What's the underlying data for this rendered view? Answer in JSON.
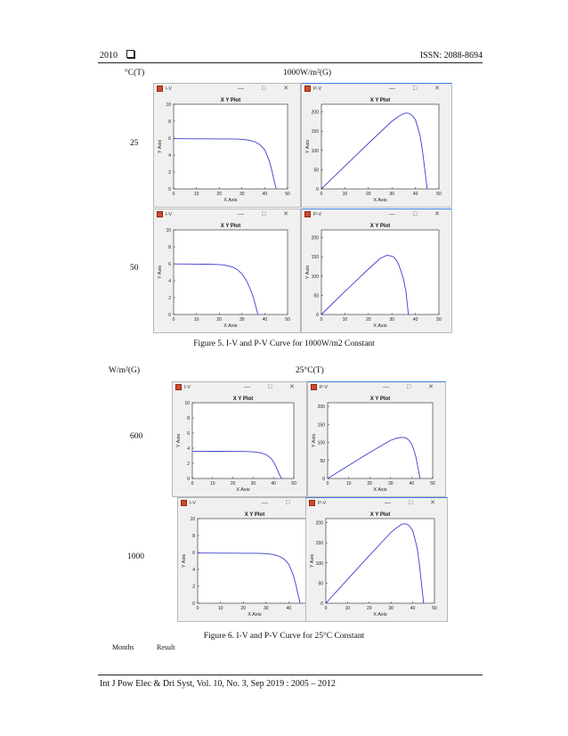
{
  "header": {
    "left": "2010",
    "right": "ISSN: 2088-8694"
  },
  "footer": {
    "citation": "Int J Pow Elec & Dri Syst, Vol. 10, No. 3, Sep 2019 :  2005 – 2012"
  },
  "figure5": {
    "col_temp": "°C(T)",
    "col_irr": "1000W/m²(G)",
    "row1": "25",
    "row2": "50",
    "caption": "Figure 5. I-V and P-V Curve for 1000W/m2 Constant"
  },
  "figure6": {
    "col_irr": "W/m²(G)",
    "col_temp": "25°C(T)",
    "row1": "600",
    "row2": "1000",
    "caption": "Figure 6. I-V and P-V Curve for 25°C Constant"
  },
  "table_fragment": {
    "col1": "Months",
    "col2": "Result"
  },
  "window": {
    "iv_title": "I-V",
    "pv_title": "P-V",
    "plot_title": "X Y Plot",
    "xlabel": "X Axis",
    "ylabel": "Y Axis",
    "controls": "— □ ✕",
    "icon": "matlab-figure-icon"
  },
  "colors": {
    "curve": "#3c3cd0",
    "window_bg": "#f0f0f0",
    "active_border": "#3f7fd9"
  },
  "chart_data": [
    {
      "id": "f5_iv_25",
      "type": "line",
      "title": "X Y Plot",
      "xlabel": "X Axis",
      "ylabel": "Y Axis",
      "xlim": [
        0,
        50
      ],
      "ylim": [
        0,
        10
      ],
      "xticks": [
        0,
        10,
        20,
        30,
        40,
        50
      ],
      "yticks": [
        0,
        2,
        4,
        6,
        8,
        10
      ],
      "x": [
        0,
        5,
        10,
        15,
        20,
        25,
        28,
        30,
        32,
        34,
        36,
        38,
        40,
        42,
        43,
        44,
        45
      ],
      "y": [
        5.93,
        5.93,
        5.92,
        5.92,
        5.91,
        5.9,
        5.88,
        5.85,
        5.8,
        5.7,
        5.52,
        5.2,
        4.6,
        3.3,
        2.3,
        1.1,
        0
      ]
    },
    {
      "id": "f5_pv_25",
      "type": "line",
      "title": "X Y Plot",
      "xlabel": "X Axis",
      "ylabel": "Y Axis",
      "xlim": [
        0,
        50
      ],
      "ylim": [
        0,
        220
      ],
      "xticks": [
        0,
        10,
        20,
        30,
        40,
        50
      ],
      "yticks": [
        0,
        50,
        100,
        150,
        200
      ],
      "x": [
        0,
        5,
        10,
        15,
        20,
        25,
        30,
        33,
        35,
        36,
        37,
        38,
        39,
        40,
        41,
        42,
        43,
        44,
        45
      ],
      "y": [
        0,
        29.7,
        59.2,
        88.8,
        118,
        147,
        176,
        189,
        196,
        197,
        197,
        194,
        188,
        180,
        160,
        138,
        100,
        50,
        0
      ]
    },
    {
      "id": "f5_iv_50",
      "type": "line",
      "title": "X Y Plot",
      "xlabel": "X Axis",
      "ylabel": "Y Axis",
      "xlim": [
        0,
        50
      ],
      "ylim": [
        0,
        10
      ],
      "xticks": [
        0,
        10,
        20,
        30,
        40,
        50
      ],
      "yticks": [
        0,
        2,
        4,
        6,
        8,
        10
      ],
      "x": [
        0,
        5,
        10,
        15,
        20,
        22,
        24,
        26,
        28,
        30,
        32,
        34,
        35,
        36,
        37
      ],
      "y": [
        5.98,
        5.97,
        5.96,
        5.95,
        5.9,
        5.85,
        5.75,
        5.6,
        5.3,
        4.8,
        4.0,
        2.8,
        2.0,
        1.0,
        0
      ]
    },
    {
      "id": "f5_pv_50",
      "type": "line",
      "title": "X Y Plot",
      "xlabel": "X Axis",
      "ylabel": "Y Axis",
      "xlim": [
        0,
        50
      ],
      "ylim": [
        0,
        220
      ],
      "xticks": [
        0,
        10,
        20,
        30,
        40,
        50
      ],
      "yticks": [
        0,
        50,
        100,
        150,
        200
      ],
      "x": [
        0,
        5,
        10,
        15,
        20,
        25,
        28,
        30,
        31,
        32,
        33,
        34,
        35,
        36,
        37
      ],
      "y": [
        0,
        30,
        60,
        89,
        118,
        146,
        154,
        152,
        148,
        140,
        128,
        110,
        90,
        60,
        0
      ]
    },
    {
      "id": "f6_iv_600",
      "type": "line",
      "title": "X Y Plot",
      "xlabel": "X Axis",
      "ylabel": "Y Axis",
      "xlim": [
        0,
        50
      ],
      "ylim": [
        0,
        10
      ],
      "xticks": [
        0,
        10,
        20,
        30,
        40,
        50
      ],
      "yticks": [
        0,
        2,
        4,
        6,
        8,
        10
      ],
      "x": [
        0,
        5,
        10,
        15,
        20,
        25,
        30,
        33,
        35,
        37,
        39,
        40,
        41,
        42,
        43,
        44
      ],
      "y": [
        3.6,
        3.6,
        3.59,
        3.59,
        3.58,
        3.57,
        3.52,
        3.42,
        3.3,
        3.05,
        2.6,
        2.2,
        1.7,
        1.1,
        0.5,
        0
      ]
    },
    {
      "id": "f6_pv_600",
      "type": "line",
      "title": "X Y Plot",
      "xlabel": "X Axis",
      "ylabel": "Y Axis",
      "xlim": [
        0,
        50
      ],
      "ylim": [
        0,
        210
      ],
      "xticks": [
        0,
        10,
        20,
        30,
        40,
        50
      ],
      "yticks": [
        0,
        50,
        100,
        150,
        200
      ],
      "x": [
        0,
        5,
        10,
        15,
        20,
        25,
        30,
        33,
        35,
        36,
        37,
        38,
        39,
        40,
        41,
        42,
        43,
        44
      ],
      "y": [
        0,
        18,
        36,
        54,
        72,
        89,
        106,
        112,
        114,
        114,
        113,
        110,
        104,
        95,
        80,
        60,
        30,
        0
      ]
    },
    {
      "id": "f6_iv_1000",
      "type": "line",
      "title": "X Y Plot",
      "xlabel": "X Axis",
      "ylabel": "Y Axis",
      "xlim": [
        0,
        50
      ],
      "ylim": [
        0,
        10
      ],
      "xticks": [
        0,
        10,
        20,
        30,
        40,
        50
      ],
      "yticks": [
        0,
        2,
        4,
        6,
        8,
        10
      ],
      "x": [
        0,
        5,
        10,
        15,
        20,
        25,
        28,
        30,
        32,
        34,
        36,
        38,
        40,
        42,
        43,
        44,
        45
      ],
      "y": [
        5.93,
        5.93,
        5.92,
        5.92,
        5.91,
        5.9,
        5.88,
        5.85,
        5.8,
        5.7,
        5.52,
        5.2,
        4.6,
        3.3,
        2.3,
        1.1,
        0
      ]
    },
    {
      "id": "f6_pv_1000",
      "type": "line",
      "title": "X Y Plot",
      "xlabel": "X Axis",
      "ylabel": "Y Axis",
      "xlim": [
        0,
        50
      ],
      "ylim": [
        0,
        210
      ],
      "xticks": [
        0,
        10,
        20,
        30,
        40,
        50
      ],
      "yticks": [
        0,
        50,
        100,
        150,
        200
      ],
      "x": [
        0,
        5,
        10,
        15,
        20,
        25,
        30,
        33,
        35,
        36,
        37,
        38,
        39,
        40,
        41,
        42,
        43,
        44,
        45
      ],
      "y": [
        0,
        29.7,
        59.2,
        88.8,
        118,
        147,
        176,
        189,
        196,
        197,
        197,
        194,
        188,
        180,
        160,
        138,
        100,
        50,
        0
      ]
    }
  ]
}
